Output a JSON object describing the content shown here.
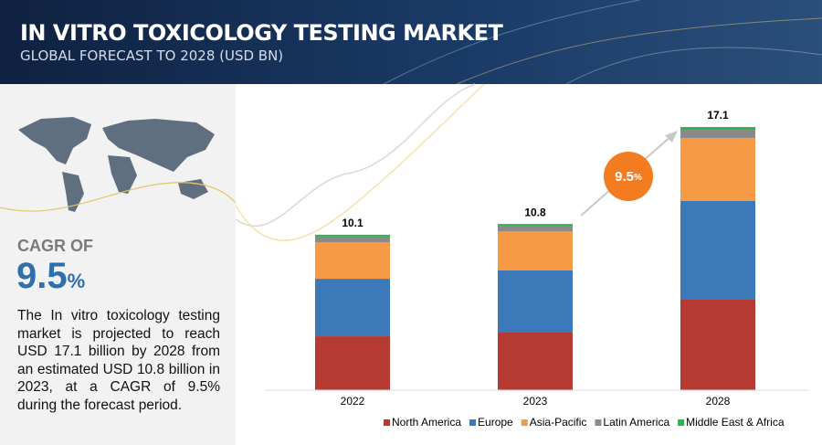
{
  "header": {
    "title": "IN VITRO TOXICOLOGY TESTING MARKET",
    "subtitle": "GLOBAL FORECAST TO 2028 (USD BN)"
  },
  "sidebar": {
    "cagr_label": "CAGR OF",
    "cagr_value": "9.5",
    "cagr_unit": "%",
    "text": "The In vitro toxicology testing market is projected to reach USD 17.1 billion by 2028 from an estimated USD 10.8 billion in 2023, at a CAGR of 9.5% during the forecast period."
  },
  "chart_data": {
    "type": "stacked_bar",
    "categories": [
      "2022",
      "2023",
      "2028"
    ],
    "totals": [
      10.1,
      10.8,
      17.1
    ],
    "annotation": {
      "value": "9.5",
      "unit": "%"
    },
    "legend": "bottom",
    "series": [
      {
        "name": "North America",
        "color": "#b53a31",
        "values": [
          3.5,
          3.74,
          5.88
        ]
      },
      {
        "name": "Europe",
        "color": "#3b79b9",
        "values": [
          3.74,
          4.04,
          6.41
        ]
      },
      {
        "name": "Asia-Pacific",
        "color": "#f79a45",
        "values": [
          2.38,
          2.55,
          4.1
        ]
      },
      {
        "name": "Latin America",
        "color": "#8a8a8a",
        "values": [
          0.36,
          0.36,
          0.53
        ]
      },
      {
        "name": "Middle East & Africa",
        "color": "#2fb34c",
        "values": [
          0.12,
          0.11,
          0.18
        ]
      }
    ]
  }
}
